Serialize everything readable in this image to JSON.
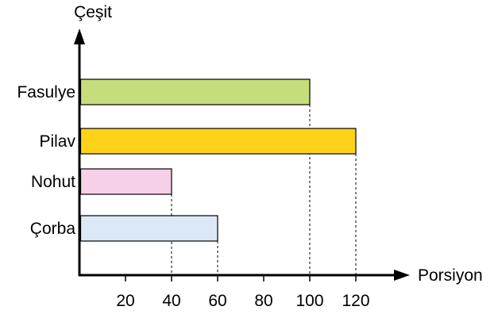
{
  "chart_data": {
    "type": "bar",
    "orientation": "horizontal",
    "categories": [
      "Fasulye",
      "Pilav",
      "Nohut",
      "Çorba"
    ],
    "values": [
      100,
      120,
      40,
      60
    ],
    "colors": [
      "#c6dd7b",
      "#ffd21a",
      "#f6d0e6",
      "#dbe9f6"
    ],
    "xlabel": "Porsiyon",
    "ylabel": "Çeşit",
    "xticks": [
      20,
      40,
      60,
      80,
      100,
      120
    ],
    "xlim": [
      0,
      140
    ],
    "grid": false,
    "dashed_reference_lines": true
  }
}
